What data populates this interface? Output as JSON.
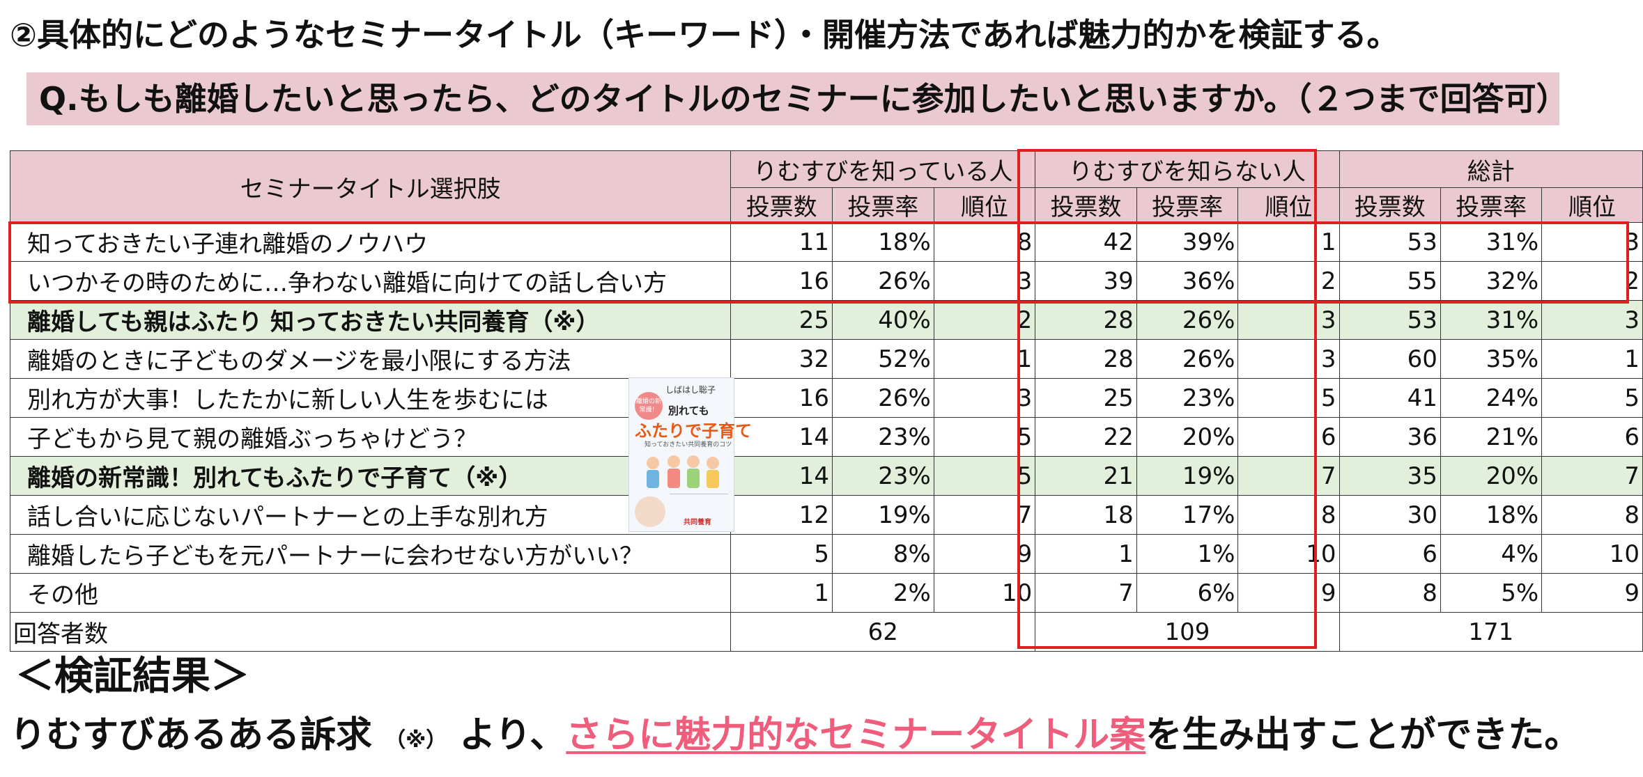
{
  "heading": "②具体的にどのようなセミナータイトル（キーワード）・開催方法であれば魅力的かを検証する。",
  "question": "Q.もしも離婚したいと思ったら、どのタイトルのセミナーに参加したいと思いますか。（２つまで回答可）",
  "table": {
    "title_header": "セミナータイトル選択肢",
    "groups": [
      "りむすびを知っている人",
      "りむすびを知らない人",
      "総計"
    ],
    "subheaders": [
      "投票数",
      "投票率",
      "順位"
    ],
    "rows": [
      {
        "title": "知っておきたい子連れ離婚のノウハウ",
        "values": [
          "11",
          "18%",
          "8",
          "42",
          "39%",
          "1",
          "53",
          "31%",
          "3"
        ]
      },
      {
        "title": "いつかその時のために…争わない離婚に向けての話し合い方",
        "values": [
          "16",
          "26%",
          "3",
          "39",
          "36%",
          "2",
          "55",
          "32%",
          "2"
        ]
      },
      {
        "title": "離婚しても親はふたり 知っておきたい共同養育（※）",
        "values": [
          "25",
          "40%",
          "2",
          "28",
          "26%",
          "3",
          "53",
          "31%",
          "3"
        ]
      },
      {
        "title": "離婚のときに子どものダメージを最小限にする方法",
        "values": [
          "32",
          "52%",
          "1",
          "28",
          "26%",
          "3",
          "60",
          "35%",
          "1"
        ]
      },
      {
        "title": "別れ方が大事！したたかに新しい人生を歩むには",
        "values": [
          "16",
          "26%",
          "3",
          "25",
          "23%",
          "5",
          "41",
          "24%",
          "5"
        ]
      },
      {
        "title": "子どもから見て親の離婚ぶっちゃけどう？",
        "values": [
          "14",
          "23%",
          "5",
          "22",
          "20%",
          "6",
          "36",
          "21%",
          "6"
        ]
      },
      {
        "title": "離婚の新常識！別れてもふたりで子育て（※）",
        "values": [
          "14",
          "23%",
          "5",
          "21",
          "19%",
          "7",
          "35",
          "20%",
          "7"
        ]
      },
      {
        "title": "話し合いに応じないパートナーとの上手な別れ方",
        "values": [
          "12",
          "19%",
          "7",
          "18",
          "17%",
          "8",
          "30",
          "18%",
          "8"
        ]
      },
      {
        "title": "離婚したら子どもを元パートナーに会わせない方がいい？",
        "values": [
          "5",
          "8%",
          "9",
          "1",
          "1%",
          "10",
          "6",
          "4%",
          "10"
        ]
      },
      {
        "title": "その他",
        "values": [
          "1",
          "2%",
          "10",
          "7",
          "6%",
          "9",
          "8",
          "5%",
          "9"
        ]
      }
    ],
    "total_label": "回答者数",
    "totals": [
      "62",
      "109",
      "171"
    ]
  },
  "book": {
    "author": "しばはし聡子",
    "badge": "離婚の新常識！",
    "title_line1": "別れても",
    "title_line2": "ふたりで子育て",
    "subtitle": "知っておきたい共同養育のコツ",
    "label": "共同養育"
  },
  "result": {
    "title": "＜検証結果＞",
    "text_before": "りむすびあるある訴求",
    "note": "（※）",
    "text_mid": "より、",
    "emphasis": "さらに魅力的なセミナータイトル案",
    "text_after": "を生み出すことができた。"
  },
  "colors": {
    "header_bg": "#eac9d1",
    "highlight_row_bg": "#e2efda",
    "red_box": "#e02020",
    "emphasis": "#ef5d7c"
  }
}
